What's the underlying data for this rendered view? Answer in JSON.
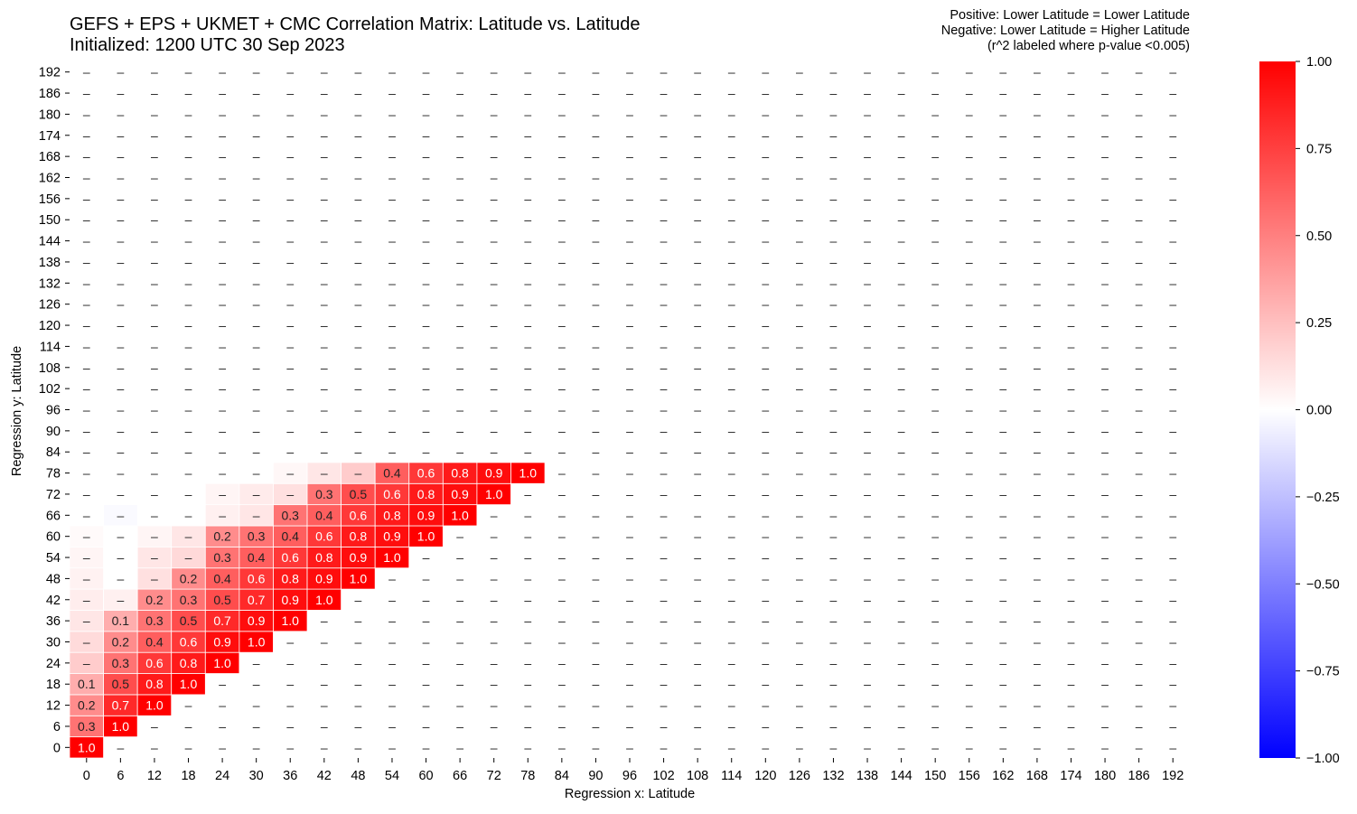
{
  "title": {
    "line1": "GEFS + EPS + UKMET + CMC Correlation Matrix: Latitude vs. Latitude",
    "line2": "Initialized: 1200 UTC 30 Sep 2023"
  },
  "note": {
    "line1": "Positive: Lower Latitude = Lower Latitude",
    "line2": "Negative: Lower Latitude = Higher Latitude",
    "line3": "(r^2 labeled where p-value <0.005)"
  },
  "chart_data": {
    "type": "heatmap",
    "xlabel": "Regression x: Latitude",
    "ylabel": "Regression y: Latitude",
    "x": [
      0,
      6,
      12,
      18,
      24,
      30,
      36,
      42,
      48,
      54,
      60,
      66,
      72,
      78,
      84,
      90,
      96,
      102,
      108,
      114,
      120,
      126,
      132,
      138,
      144,
      150,
      156,
      162,
      168,
      174,
      180,
      186,
      192
    ],
    "y": [
      0,
      6,
      12,
      18,
      24,
      30,
      36,
      42,
      48,
      54,
      60,
      66,
      72,
      78,
      84,
      90,
      96,
      102,
      108,
      114,
      120,
      126,
      132,
      138,
      144,
      150,
      156,
      162,
      168,
      174,
      180,
      186,
      192
    ],
    "missing_label": "–",
    "colorbar": {
      "min": -1.0,
      "max": 1.0,
      "colors": {
        "negative": "#0000ff",
        "zero": "#ffffff",
        "positive": "#ff0000"
      },
      "ticks": [
        "1.00",
        "0.75",
        "0.50",
        "0.25",
        "0.00",
        "−0.25",
        "−0.50",
        "−0.75",
        "−1.00"
      ]
    },
    "cells": [
      {
        "x": 0,
        "y": 0,
        "r": 1.0,
        "label": "1.0"
      },
      {
        "x": 0,
        "y": 6,
        "r": 0.55,
        "label": "0.3"
      },
      {
        "x": 0,
        "y": 12,
        "r": 0.45,
        "label": "0.2"
      },
      {
        "x": 0,
        "y": 18,
        "r": 0.32,
        "label": "0.1"
      },
      {
        "x": 0,
        "y": 24,
        "r": 0.2,
        "label": "–"
      },
      {
        "x": 0,
        "y": 30,
        "r": 0.14,
        "label": "–"
      },
      {
        "x": 0,
        "y": 36,
        "r": 0.1,
        "label": "–"
      },
      {
        "x": 0,
        "y": 42,
        "r": 0.07,
        "label": "–"
      },
      {
        "x": 0,
        "y": 48,
        "r": 0.05,
        "label": "–"
      },
      {
        "x": 0,
        "y": 54,
        "r": 0.04,
        "label": "–"
      },
      {
        "x": 0,
        "y": 60,
        "r": 0.02,
        "label": "–"
      },
      {
        "x": 6,
        "y": 6,
        "r": 1.0,
        "label": "1.0"
      },
      {
        "x": 6,
        "y": 12,
        "r": 0.84,
        "label": "0.7"
      },
      {
        "x": 6,
        "y": 18,
        "r": 0.7,
        "label": "0.5"
      },
      {
        "x": 6,
        "y": 24,
        "r": 0.55,
        "label": "0.3"
      },
      {
        "x": 6,
        "y": 30,
        "r": 0.45,
        "label": "0.2"
      },
      {
        "x": 6,
        "y": 36,
        "r": 0.32,
        "label": "0.1"
      },
      {
        "x": 6,
        "y": 42,
        "r": 0.06,
        "label": "–"
      },
      {
        "x": 6,
        "y": 66,
        "r": -0.02,
        "label": "–"
      },
      {
        "x": 12,
        "y": 12,
        "r": 1.0,
        "label": "1.0"
      },
      {
        "x": 12,
        "y": 18,
        "r": 0.9,
        "label": "0.8"
      },
      {
        "x": 12,
        "y": 24,
        "r": 0.78,
        "label": "0.6"
      },
      {
        "x": 12,
        "y": 30,
        "r": 0.63,
        "label": "0.4"
      },
      {
        "x": 12,
        "y": 36,
        "r": 0.55,
        "label": "0.3"
      },
      {
        "x": 12,
        "y": 42,
        "r": 0.45,
        "label": "0.2"
      },
      {
        "x": 12,
        "y": 48,
        "r": 0.12,
        "label": "–"
      },
      {
        "x": 12,
        "y": 54,
        "r": 0.1,
        "label": "–"
      },
      {
        "x": 12,
        "y": 60,
        "r": 0.04,
        "label": "–"
      },
      {
        "x": 18,
        "y": 18,
        "r": 1.0,
        "label": "1.0"
      },
      {
        "x": 18,
        "y": 24,
        "r": 0.9,
        "label": "0.8"
      },
      {
        "x": 18,
        "y": 30,
        "r": 0.78,
        "label": "0.6"
      },
      {
        "x": 18,
        "y": 36,
        "r": 0.7,
        "label": "0.5"
      },
      {
        "x": 18,
        "y": 42,
        "r": 0.55,
        "label": "0.3"
      },
      {
        "x": 18,
        "y": 48,
        "r": 0.45,
        "label": "0.2"
      },
      {
        "x": 18,
        "y": 54,
        "r": 0.15,
        "label": "–"
      },
      {
        "x": 18,
        "y": 60,
        "r": 0.1,
        "label": "–"
      },
      {
        "x": 24,
        "y": 24,
        "r": 1.0,
        "label": "1.0"
      },
      {
        "x": 24,
        "y": 30,
        "r": 0.95,
        "label": "0.9"
      },
      {
        "x": 24,
        "y": 36,
        "r": 0.84,
        "label": "0.7"
      },
      {
        "x": 24,
        "y": 42,
        "r": 0.7,
        "label": "0.5"
      },
      {
        "x": 24,
        "y": 48,
        "r": 0.63,
        "label": "0.4"
      },
      {
        "x": 24,
        "y": 54,
        "r": 0.55,
        "label": "0.3"
      },
      {
        "x": 24,
        "y": 60,
        "r": 0.45,
        "label": "0.2"
      },
      {
        "x": 24,
        "y": 66,
        "r": 0.06,
        "label": "–"
      },
      {
        "x": 24,
        "y": 72,
        "r": 0.04,
        "label": "–"
      },
      {
        "x": 30,
        "y": 30,
        "r": 1.0,
        "label": "1.0"
      },
      {
        "x": 30,
        "y": 36,
        "r": 0.95,
        "label": "0.9"
      },
      {
        "x": 30,
        "y": 42,
        "r": 0.84,
        "label": "0.7"
      },
      {
        "x": 30,
        "y": 48,
        "r": 0.78,
        "label": "0.6"
      },
      {
        "x": 30,
        "y": 54,
        "r": 0.63,
        "label": "0.4"
      },
      {
        "x": 30,
        "y": 60,
        "r": 0.55,
        "label": "0.3"
      },
      {
        "x": 30,
        "y": 66,
        "r": 0.1,
        "label": "–"
      },
      {
        "x": 30,
        "y": 72,
        "r": 0.08,
        "label": "–"
      },
      {
        "x": 36,
        "y": 36,
        "r": 1.0,
        "label": "1.0"
      },
      {
        "x": 36,
        "y": 42,
        "r": 0.95,
        "label": "0.9"
      },
      {
        "x": 36,
        "y": 48,
        "r": 0.9,
        "label": "0.8"
      },
      {
        "x": 36,
        "y": 54,
        "r": 0.78,
        "label": "0.6"
      },
      {
        "x": 36,
        "y": 60,
        "r": 0.63,
        "label": "0.4"
      },
      {
        "x": 36,
        "y": 66,
        "r": 0.55,
        "label": "0.3"
      },
      {
        "x": 36,
        "y": 72,
        "r": 0.12,
        "label": "–"
      },
      {
        "x": 36,
        "y": 78,
        "r": 0.03,
        "label": "–"
      },
      {
        "x": 42,
        "y": 42,
        "r": 1.0,
        "label": "1.0"
      },
      {
        "x": 42,
        "y": 48,
        "r": 0.95,
        "label": "0.9"
      },
      {
        "x": 42,
        "y": 54,
        "r": 0.9,
        "label": "0.8"
      },
      {
        "x": 42,
        "y": 60,
        "r": 0.78,
        "label": "0.6"
      },
      {
        "x": 42,
        "y": 66,
        "r": 0.63,
        "label": "0.4"
      },
      {
        "x": 42,
        "y": 72,
        "r": 0.55,
        "label": "0.3"
      },
      {
        "x": 42,
        "y": 78,
        "r": 0.1,
        "label": "–"
      },
      {
        "x": 48,
        "y": 48,
        "r": 1.0,
        "label": "1.0"
      },
      {
        "x": 48,
        "y": 54,
        "r": 0.95,
        "label": "0.9"
      },
      {
        "x": 48,
        "y": 60,
        "r": 0.9,
        "label": "0.8"
      },
      {
        "x": 48,
        "y": 66,
        "r": 0.78,
        "label": "0.6"
      },
      {
        "x": 48,
        "y": 72,
        "r": 0.7,
        "label": "0.5"
      },
      {
        "x": 48,
        "y": 78,
        "r": 0.2,
        "label": "–"
      },
      {
        "x": 54,
        "y": 54,
        "r": 1.0,
        "label": "1.0"
      },
      {
        "x": 54,
        "y": 60,
        "r": 0.95,
        "label": "0.9"
      },
      {
        "x": 54,
        "y": 66,
        "r": 0.9,
        "label": "0.8"
      },
      {
        "x": 54,
        "y": 72,
        "r": 0.78,
        "label": "0.6"
      },
      {
        "x": 54,
        "y": 78,
        "r": 0.63,
        "label": "0.4"
      },
      {
        "x": 60,
        "y": 60,
        "r": 1.0,
        "label": "1.0"
      },
      {
        "x": 60,
        "y": 66,
        "r": 0.95,
        "label": "0.9"
      },
      {
        "x": 60,
        "y": 72,
        "r": 0.9,
        "label": "0.8"
      },
      {
        "x": 60,
        "y": 78,
        "r": 0.78,
        "label": "0.6"
      },
      {
        "x": 66,
        "y": 66,
        "r": 1.0,
        "label": "1.0"
      },
      {
        "x": 66,
        "y": 72,
        "r": 0.95,
        "label": "0.9"
      },
      {
        "x": 66,
        "y": 78,
        "r": 0.9,
        "label": "0.8"
      },
      {
        "x": 72,
        "y": 72,
        "r": 1.0,
        "label": "1.0"
      },
      {
        "x": 72,
        "y": 78,
        "r": 0.95,
        "label": "0.9"
      },
      {
        "x": 78,
        "y": 78,
        "r": 1.0,
        "label": "1.0"
      }
    ]
  }
}
